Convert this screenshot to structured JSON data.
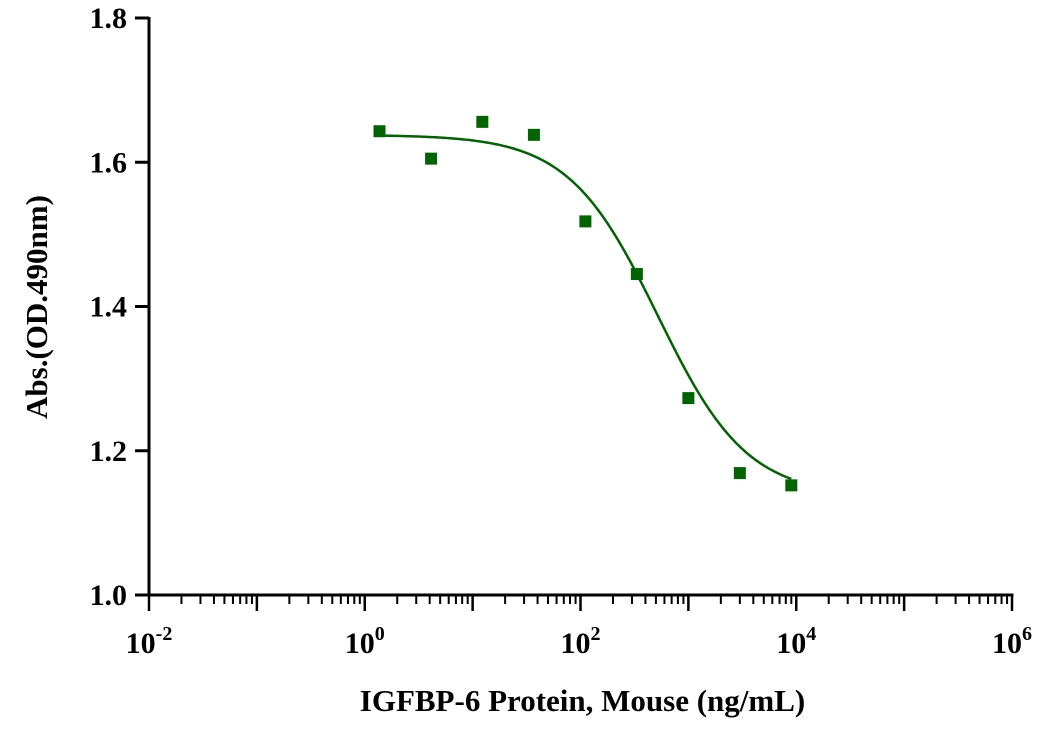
{
  "chart_data": {
    "type": "scatter",
    "title": "",
    "xlabel": "IGFBP-6 Protein, Mouse  (ng/mL)",
    "ylabel": "Abs.(OD.490nm)",
    "x_scale": "log10",
    "xlim": [
      0.01,
      1000000
    ],
    "ylim": [
      1.0,
      1.8
    ],
    "x_ticks": [
      {
        "base": "10",
        "exp": "-2"
      },
      {
        "base": "10",
        "exp": "0"
      },
      {
        "base": "10",
        "exp": "2"
      },
      {
        "base": "10",
        "exp": "4"
      },
      {
        "base": "10",
        "exp": "6"
      }
    ],
    "y_ticks": [
      "1.0",
      "1.2",
      "1.4",
      "1.6",
      "1.8"
    ],
    "grid": false,
    "legend": "none",
    "color": "#006400",
    "marker": "square",
    "series": [
      {
        "x": [
          1.37,
          4.12,
          12.3,
          37.0,
          111,
          333,
          1000,
          3000,
          9000
        ],
        "y": [
          1.643,
          1.605,
          1.656,
          1.638,
          1.518,
          1.445,
          1.273,
          1.169,
          1.152
        ]
      }
    ],
    "fit": {
      "type": "4PL",
      "top": 1.638,
      "bottom": 1.137,
      "ec50": 520,
      "hill": 1.05,
      "x_range": [
        1.37,
        9000
      ]
    }
  }
}
